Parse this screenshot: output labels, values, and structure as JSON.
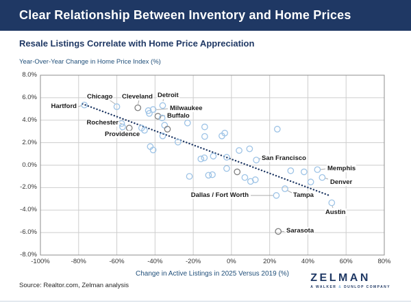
{
  "header": {
    "title": "Clear Relationship Between Inventory and Home Prices"
  },
  "chart": {
    "subtitle": "Resale Listings Correlate with Home Price Appreciation"
  },
  "chart_data": {
    "type": "scatter",
    "title": "Resale Listings Correlate with Home Price Appreciation",
    "ylabel": "Year-Over-Year Change in Home Price Index (%)",
    "xlabel": "Change in Active Listings in 2025 Versus 2019 (%)",
    "xlim": [
      -100,
      80
    ],
    "ylim": [
      -8,
      8
    ],
    "x_ticks": [
      -100,
      -80,
      -60,
      -40,
      -20,
      0,
      20,
      40,
      60,
      80
    ],
    "x_tick_labels": [
      "-100%",
      "-80%",
      "-60%",
      "-40%",
      "-20%",
      "0%",
      "20%",
      "40%",
      "60%",
      "80%"
    ],
    "y_ticks": [
      8,
      6,
      4,
      2,
      0,
      -2,
      -4,
      -6,
      -8
    ],
    "y_tick_labels": [
      "8.0%",
      "6.0%",
      "4.0%",
      "2.0%",
      "0.0%",
      "-2.0%",
      "-4.0%",
      "-6.0%",
      "-8.0%"
    ],
    "grid": true,
    "legend": "none",
    "colors": {
      "blue": "#9DC3E6",
      "gray": "#7F7F7F",
      "trend": "#1F3864"
    },
    "trendline": {
      "style": "dotted",
      "x_start": -78,
      "y_start": 5.45,
      "x_end": 52,
      "y_end": -2.75
    },
    "points": [
      {
        "x": -77,
        "y": 5.35,
        "label": "Hartford",
        "color": "blue"
      },
      {
        "x": -60,
        "y": 5.2,
        "label": "Chicago",
        "color": "blue"
      },
      {
        "x": -49,
        "y": 5.1,
        "label": "Cleveland",
        "color": "gray"
      },
      {
        "x": -36,
        "y": 5.3,
        "label": "Detroit",
        "color": "blue"
      },
      {
        "x": -41,
        "y": 4.95,
        "label": "Milwaukee",
        "color": "blue"
      },
      {
        "x": -38.5,
        "y": 4.35,
        "label": "Buffalo",
        "color": "gray"
      },
      {
        "x": -57.5,
        "y": 3.7,
        "label": "Rochester",
        "color": "blue"
      },
      {
        "x": -57,
        "y": 3.4,
        "label": "Providence",
        "color": "blue"
      },
      {
        "x": 13,
        "y": 0.45,
        "label": "San Francisco",
        "color": "blue"
      },
      {
        "x": 45,
        "y": -0.4,
        "label": "Memphis",
        "color": "blue"
      },
      {
        "x": 47.5,
        "y": -1.1,
        "label": "Denver",
        "color": "blue"
      },
      {
        "x": 23.5,
        "y": -2.7,
        "label": "Dallas / Fort Worth",
        "color": "blue"
      },
      {
        "x": 28,
        "y": -2.1,
        "label": "Tampa",
        "color": "blue"
      },
      {
        "x": 52.5,
        "y": -3.35,
        "label": "Austin",
        "color": "blue"
      },
      {
        "x": 24.5,
        "y": -5.9,
        "label": "Sarasota",
        "color": "gray"
      },
      {
        "x": -43.5,
        "y": 4.85,
        "color": "blue"
      },
      {
        "x": -43,
        "y": 4.6,
        "color": "blue"
      },
      {
        "x": -36.3,
        "y": 4.2,
        "color": "blue"
      },
      {
        "x": -53.5,
        "y": 3.3,
        "color": "gray"
      },
      {
        "x": -47,
        "y": 3.3,
        "color": "blue"
      },
      {
        "x": -45.5,
        "y": 3.1,
        "color": "blue"
      },
      {
        "x": -35,
        "y": 3.55,
        "color": "blue"
      },
      {
        "x": -33.5,
        "y": 3.2,
        "color": "gray"
      },
      {
        "x": -36,
        "y": 2.6,
        "color": "blue"
      },
      {
        "x": -28,
        "y": 2.05,
        "color": "blue"
      },
      {
        "x": -23,
        "y": 3.75,
        "color": "blue"
      },
      {
        "x": -14,
        "y": 3.4,
        "color": "blue"
      },
      {
        "x": -14,
        "y": 2.55,
        "color": "blue"
      },
      {
        "x": -5,
        "y": 2.6,
        "color": "blue"
      },
      {
        "x": -3.5,
        "y": 2.85,
        "color": "blue"
      },
      {
        "x": -42.5,
        "y": 1.65,
        "color": "blue"
      },
      {
        "x": -41,
        "y": 1.35,
        "color": "blue"
      },
      {
        "x": 24,
        "y": 3.2,
        "color": "blue"
      },
      {
        "x": -16,
        "y": 0.55,
        "color": "blue"
      },
      {
        "x": -14.2,
        "y": 0.65,
        "color": "blue"
      },
      {
        "x": -9.5,
        "y": 0.8,
        "color": "blue"
      },
      {
        "x": -2.5,
        "y": 0.7,
        "color": "blue"
      },
      {
        "x": 4,
        "y": 1.3,
        "color": "blue"
      },
      {
        "x": 9.5,
        "y": 1.45,
        "color": "blue"
      },
      {
        "x": -22,
        "y": -1.0,
        "color": "blue"
      },
      {
        "x": -12,
        "y": -0.9,
        "color": "blue"
      },
      {
        "x": -10,
        "y": -0.85,
        "color": "blue"
      },
      {
        "x": -2.5,
        "y": -0.3,
        "color": "blue"
      },
      {
        "x": 3,
        "y": -0.6,
        "color": "gray"
      },
      {
        "x": 7,
        "y": -1.1,
        "color": "blue"
      },
      {
        "x": 10,
        "y": -1.45,
        "color": "blue"
      },
      {
        "x": 12.5,
        "y": -1.3,
        "color": "blue"
      },
      {
        "x": 31,
        "y": -0.5,
        "color": "blue"
      },
      {
        "x": 38,
        "y": -0.6,
        "color": "blue"
      },
      {
        "x": 41.5,
        "y": -1.5,
        "color": "blue"
      }
    ]
  },
  "footer": {
    "source": "Source: Realtor.com, Zelman analysis",
    "logo": {
      "wordmark": "ZELMAN",
      "tagline_pre": "A WALKER",
      "tagline_amp": "&",
      "tagline_post": "DUNLOP COMPANY"
    }
  }
}
